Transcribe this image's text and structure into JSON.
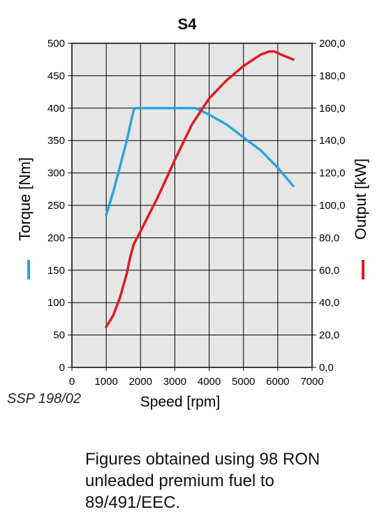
{
  "source_code": "SSP 198/02",
  "note_lines": [
    "Figures obtained using 98 RON",
    "unleaded premium fuel to",
    "89/491/EEC."
  ],
  "colors": {
    "torque": "#29a3e0",
    "output": "#e11b22",
    "grid": "#000000",
    "plot_bg": "#e6e6e6"
  },
  "chart_data": {
    "type": "line",
    "title": "S4",
    "xlabel": "Speed [rpm]",
    "ylabel_left": "Torque [Nm]",
    "ylabel_right": "Output [kW]",
    "xlim": [
      0,
      7000
    ],
    "ylim_left": [
      0,
      500
    ],
    "ylim_right": [
      0,
      200
    ],
    "x_ticks": [
      "0",
      "1000",
      "2000",
      "3000",
      "4000",
      "5000",
      "6000",
      "7000"
    ],
    "y_ticks_left": [
      "0",
      "50",
      "100",
      "150",
      "200",
      "250",
      "300",
      "350",
      "400",
      "450",
      "500"
    ],
    "y_ticks_right": [
      "0,0",
      "20,0",
      "40,0",
      "60,0",
      "80,0",
      "100,0",
      "120,0",
      "140,0",
      "160,0",
      "180,0",
      "200,0"
    ],
    "grid": true,
    "series": [
      {
        "name": "Torque [Nm]",
        "axis": "left",
        "color": "#29a3e0",
        "x": [
          1000,
          1200,
          1400,
          1600,
          1800,
          1850,
          2000,
          3000,
          3600,
          4000,
          4500,
          5000,
          5500,
          6000,
          6450
        ],
        "y": [
          235,
          270,
          310,
          350,
          398,
          400,
          400,
          400,
          400,
          390,
          375,
          355,
          335,
          308,
          280
        ]
      },
      {
        "name": "Output [kW]",
        "axis": "right",
        "color": "#e11b22",
        "x": [
          1000,
          1200,
          1400,
          1600,
          1700,
          1800,
          2000,
          2500,
          3000,
          3500,
          4000,
          4500,
          5000,
          5500,
          5750,
          5900,
          6100,
          6450
        ],
        "y": [
          25,
          32,
          43,
          58,
          68,
          76,
          84,
          105,
          128,
          150,
          166,
          177,
          186,
          193,
          195,
          195,
          193,
          190
        ]
      }
    ]
  }
}
